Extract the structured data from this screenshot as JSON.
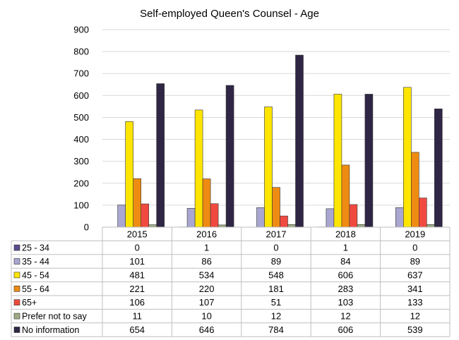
{
  "chart_data": {
    "type": "bar",
    "title": "Self-employed Queen's Counsel - Age",
    "categories": [
      "2015",
      "2016",
      "2017",
      "2018",
      "2019"
    ],
    "ylim": [
      0,
      900
    ],
    "yticks": [
      0,
      100,
      200,
      300,
      400,
      500,
      600,
      700,
      800,
      900
    ],
    "grid": true,
    "legend_placement": "data-table-left",
    "series": [
      {
        "name": "25 - 34",
        "color": "#5b4a8c",
        "values": [
          0,
          1,
          0,
          1,
          0
        ]
      },
      {
        "name": "35 - 44",
        "color": "#a9a7d1",
        "values": [
          101,
          86,
          89,
          84,
          89
        ]
      },
      {
        "name": "45 - 54",
        "color": "#ffe500",
        "values": [
          481,
          534,
          548,
          606,
          637
        ]
      },
      {
        "name": "55 - 64",
        "color": "#ee8b12",
        "values": [
          221,
          220,
          181,
          283,
          341
        ]
      },
      {
        "name": "65+",
        "color": "#f04a40",
        "values": [
          106,
          107,
          51,
          103,
          133
        ]
      },
      {
        "name": "Prefer not to say",
        "color": "#9cab84",
        "values": [
          11,
          10,
          12,
          12,
          12
        ]
      },
      {
        "name": "No information",
        "color": "#2f2645",
        "values": [
          654,
          646,
          784,
          606,
          539
        ]
      }
    ]
  }
}
